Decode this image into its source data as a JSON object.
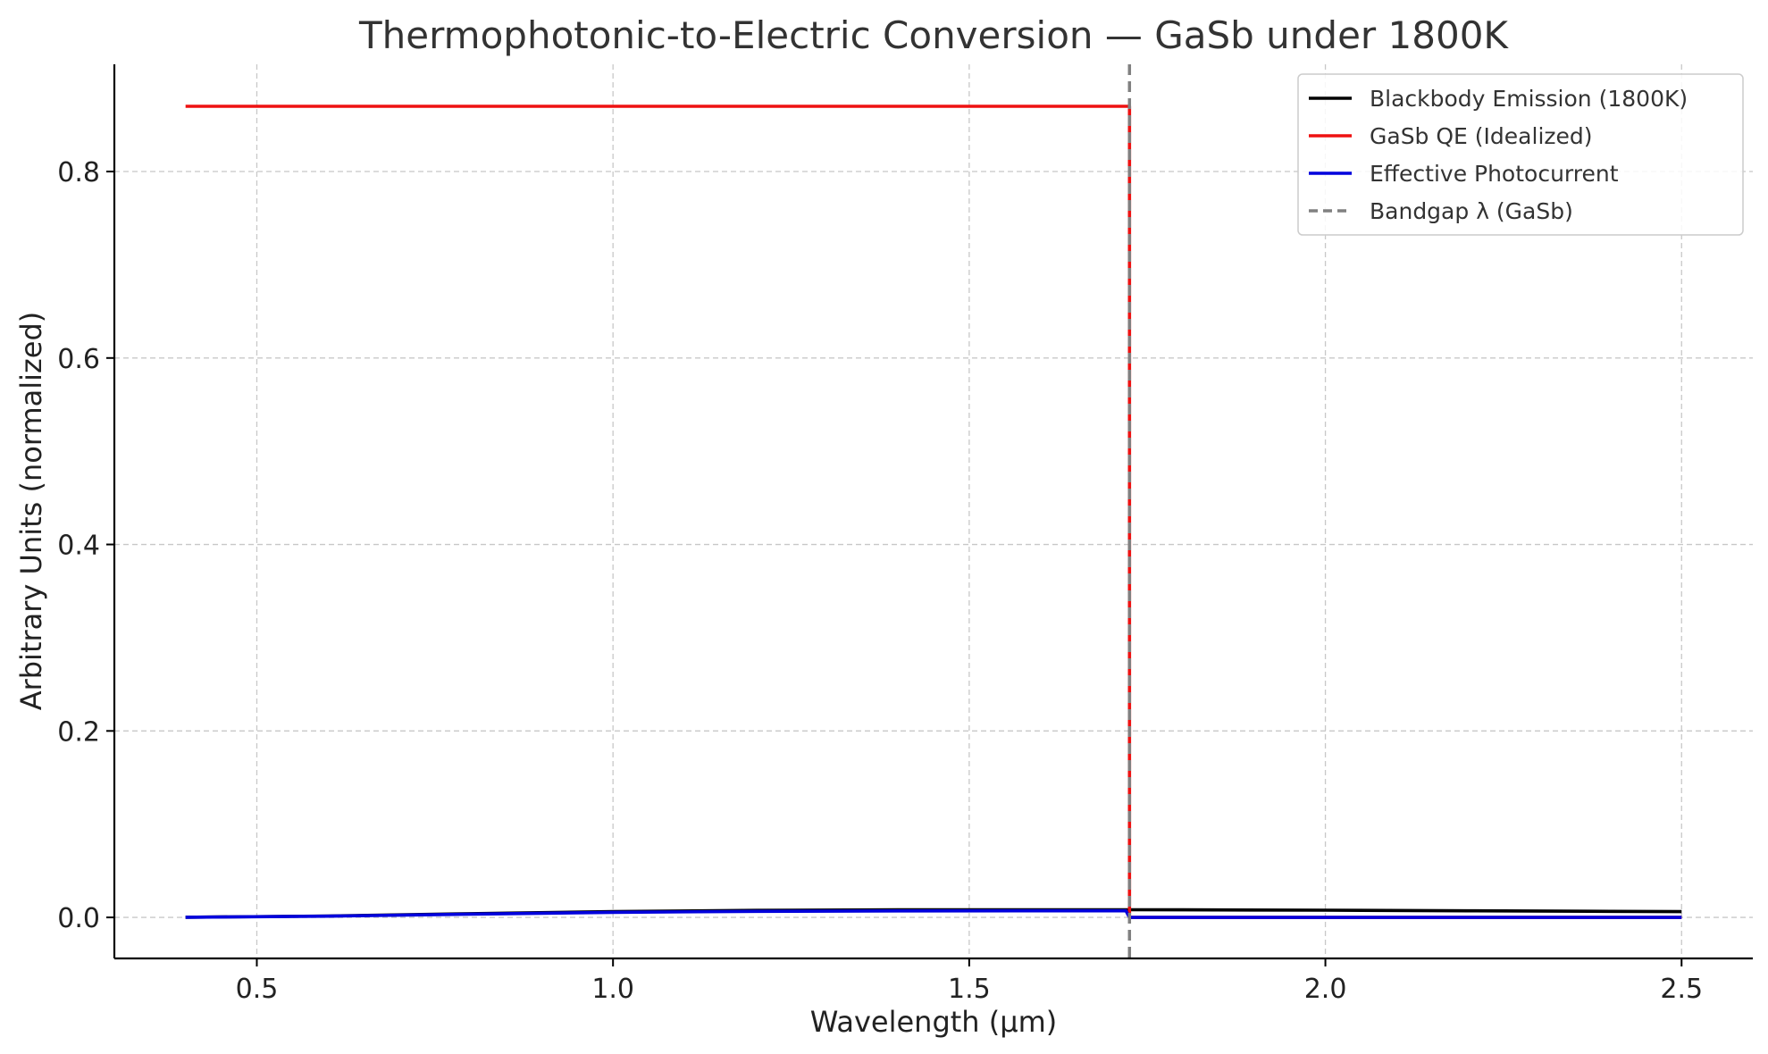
{
  "chart_data": {
    "type": "line",
    "title": "Thermophotonic-to-Electric Conversion — GaSb under 1800K",
    "xlabel": "Wavelength (µm)",
    "ylabel": "Arbitrary Units (normalized)",
    "xlim": [
      0.3,
      2.6
    ],
    "ylim": [
      -0.044,
      0.915
    ],
    "xticks": [
      0.5,
      1.0,
      1.5,
      2.0,
      2.5
    ],
    "xtick_labels": [
      "0.5",
      "1.0",
      "1.5",
      "2.0",
      "2.5"
    ],
    "yticks": [
      0.0,
      0.2,
      0.4,
      0.6,
      0.8
    ],
    "ytick_labels": [
      "0.0",
      "0.2",
      "0.4",
      "0.6",
      "0.8"
    ],
    "grid": true,
    "legend_position": "top-right",
    "series": [
      {
        "name": "Blackbody Emission (1800K)",
        "color": "#000000",
        "style": "solid",
        "x": [
          0.4,
          0.6,
          0.8,
          1.0,
          1.2,
          1.4,
          1.6,
          1.72,
          1.73,
          1.8,
          2.0,
          2.2,
          2.4,
          2.5
        ],
        "y": [
          0.0002,
          0.0015,
          0.004,
          0.0062,
          0.0075,
          0.0081,
          0.0082,
          0.0082,
          0.0082,
          0.0081,
          0.0077,
          0.0071,
          0.0065,
          0.0062
        ]
      },
      {
        "name": "GaSb QE (Idealized)",
        "color": "#ee1111",
        "style": "solid",
        "x": [
          0.4,
          1.725,
          1.725,
          2.5
        ],
        "y": [
          0.87,
          0.87,
          0.0,
          0.0
        ]
      },
      {
        "name": "Effective Photocurrent",
        "color": "#0000dd",
        "style": "solid",
        "x": [
          0.4,
          0.6,
          0.8,
          1.0,
          1.2,
          1.4,
          1.6,
          1.72,
          1.725,
          1.8,
          2.0,
          2.2,
          2.4,
          2.5
        ],
        "y": [
          0.0002,
          0.0013,
          0.0035,
          0.0054,
          0.0065,
          0.007,
          0.0071,
          0.0071,
          0.0,
          0.0,
          0.0,
          0.0,
          0.0,
          0.0
        ]
      },
      {
        "name": "Bandgap λ (GaSb)",
        "color": "#808080",
        "style": "dashed",
        "vline_x": 1.725
      }
    ]
  }
}
